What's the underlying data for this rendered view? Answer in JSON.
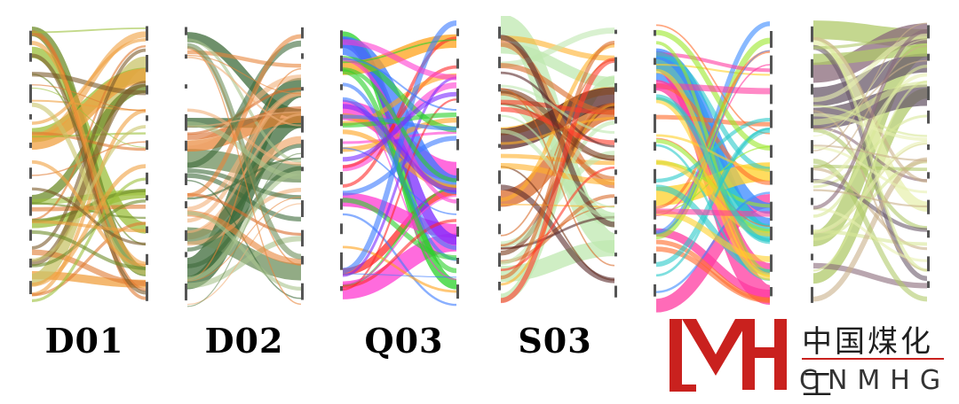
{
  "captions": [
    "D01",
    "D02",
    "Q03",
    "S03"
  ],
  "logo": {
    "name_cn": "中国煤化工",
    "name_en": "CNMHG",
    "brand_color": "#c9211e"
  },
  "panels": [
    {
      "id": "D01",
      "colors": [
        "#7b5a2a",
        "#9bbf3a",
        "#f0a040",
        "#c9c46a",
        "#e07a30",
        "#6e8c2a"
      ]
    },
    {
      "id": "D02",
      "colors": [
        "#3d6b3a",
        "#e8853a",
        "#f2b07a",
        "#6e8f5c",
        "#d96a2a",
        "#a9c38c"
      ]
    },
    {
      "id": "Q03",
      "colors": [
        "#ff2a2a",
        "#7a2aff",
        "#ffa21a",
        "#2ad12a",
        "#ff3ad1",
        "#3a7aff"
      ]
    },
    {
      "id": "S03",
      "colors": [
        "#5a2a2a",
        "#ff3a2a",
        "#ffb02a",
        "#bfe8b0",
        "#d96a2a",
        "#7a3a1a"
      ]
    },
    {
      "id": "p5",
      "colors": [
        "#2ac9c9",
        "#ff3aa0",
        "#9be82a",
        "#ffd02a",
        "#3a8aff",
        "#ff6a2a"
      ]
    },
    {
      "id": "p6",
      "colors": [
        "#8a6a7a",
        "#d8e89a",
        "#c9b08a",
        "#e8f0b0",
        "#6a5a6a",
        "#b0c96a"
      ]
    }
  ]
}
